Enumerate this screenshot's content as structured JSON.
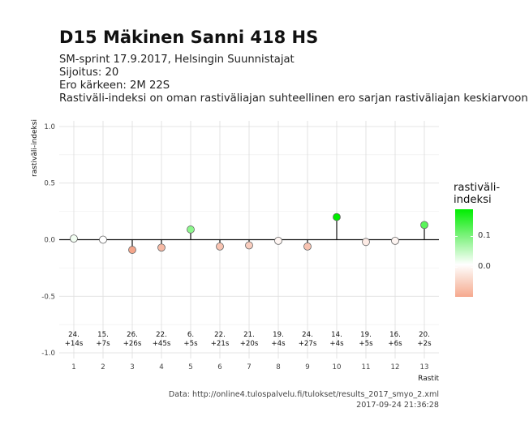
{
  "title": "D15 Mäkinen Sanni 418 HS",
  "subtitle_lines": [
    "SM-sprint 17.9.2017, Helsingin Suunnistajat",
    "Sijoitus: 20",
    "Ero kärkeen: 2M 22S",
    "Rastiväli-indeksi on oman rastiväliajan suhteellinen ero sarjan rastiväliajan keskiarvoon"
  ],
  "caption_lines": [
    "Data: http://online4.tulospalvelu.fi/tulokset/results_2017_smyo_2.xml",
    "2017-09-24 21:36:28"
  ],
  "legend": {
    "title_lines": [
      "rastiväli-",
      "indeksi"
    ],
    "ticks": [
      "0.1",
      "0.0"
    ]
  },
  "chart_data": {
    "type": "lollipop",
    "xlabel": "Rastit",
    "ylabel": "rastiväli-indeksi",
    "ylim": [
      -1.05,
      1.05
    ],
    "yticks": [
      "1.0",
      "0.5",
      "0.0",
      "-0.5",
      "-1.0"
    ],
    "ytick_values": [
      1.0,
      0.5,
      0.0,
      -0.5,
      -1.0
    ],
    "x": [
      1,
      2,
      3,
      4,
      5,
      6,
      7,
      8,
      9,
      10,
      11,
      12,
      13
    ],
    "values": [
      0.01,
      0.0,
      -0.09,
      -0.07,
      0.09,
      -0.06,
      -0.05,
      -0.01,
      -0.06,
      0.2,
      -0.02,
      -0.01,
      0.13
    ],
    "labels_top": [
      "24.",
      "15.",
      "26.",
      "22.",
      "6.",
      "22.",
      "21.",
      "19.",
      "24.",
      "14.",
      "19.",
      "16.",
      "20."
    ],
    "labels_bottom": [
      "+14s",
      "+7s",
      "+26s",
      "+45s",
      "+5s",
      "+21s",
      "+20s",
      "+4s",
      "+27s",
      "+4s",
      "+5s",
      "+6s",
      "+2s"
    ],
    "grid": true,
    "legend_position": "right",
    "colors": {
      "high": "#00ee00",
      "mid": "#ffffff",
      "low": "#f4a58a"
    }
  }
}
